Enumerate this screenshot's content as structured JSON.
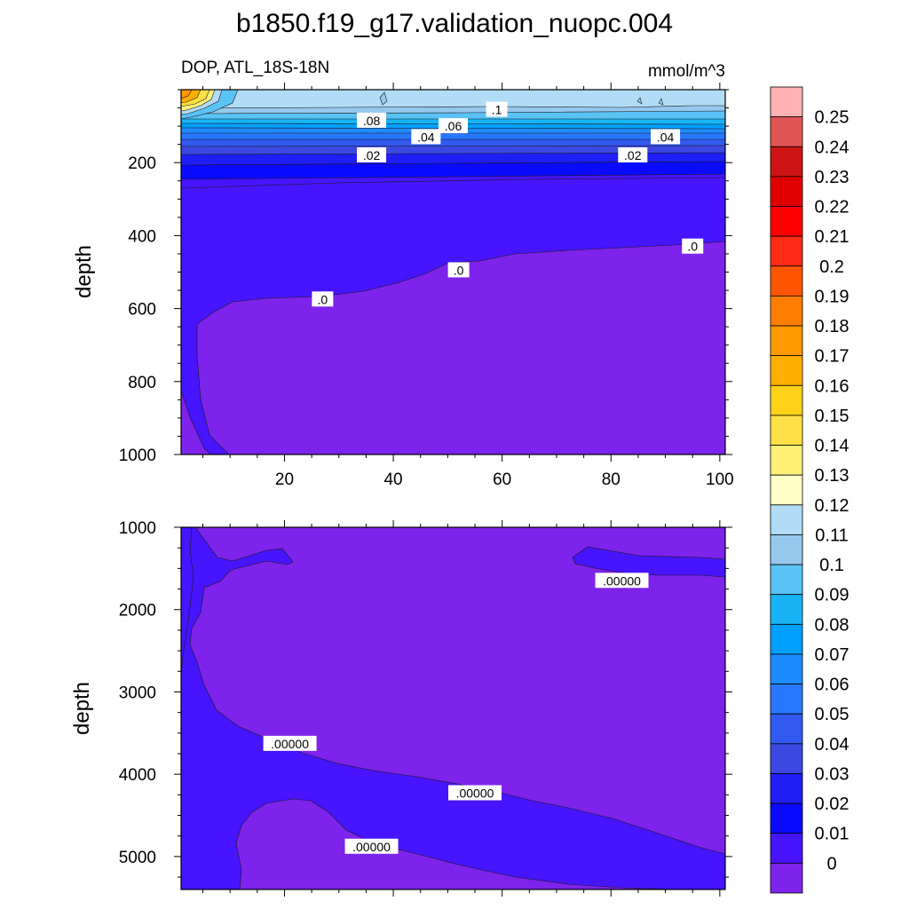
{
  "chart_data": {
    "type": "heatmap",
    "title": "b1850.f19_g17.validation_nuopc.004",
    "variable_label": "DOP, ATL_18S-18N",
    "units": "mmol/m^3",
    "colorbar": {
      "levels": [
        "0.25",
        "0.24",
        "0.23",
        "0.22",
        "0.21",
        "0.2",
        "0.19",
        "0.18",
        "0.17",
        "0.16",
        "0.15",
        "0.14",
        "0.13",
        "0.12",
        "0.11",
        "0.1",
        "0.09",
        "0.08",
        "0.07",
        "0.06",
        "0.05",
        "0.04",
        "0.03",
        "0.02",
        "0.01",
        "0"
      ],
      "colors": [
        "#ffb2b2",
        "#e05454",
        "#cc1414",
        "#e00000",
        "#ff0000",
        "#ff2a14",
        "#ff5500",
        "#ff7d00",
        "#ff9900",
        "#ffaf00",
        "#ffd21a",
        "#ffe046",
        "#fff078",
        "#ffffc8",
        "#b2dcf5",
        "#96c8ee",
        "#5ac3f5",
        "#18b4f5",
        "#00a0ff",
        "#1e8cff",
        "#2878ff",
        "#325af0",
        "#3c48e1",
        "#1e1ef5",
        "#0a0aff",
        "#4614ff",
        "#7d23eb"
      ]
    },
    "panels": [
      {
        "id": "upper",
        "ylabel": "depth",
        "xlabel": "",
        "xlim": [
          1,
          101
        ],
        "ylim": [
          0,
          1000
        ],
        "x_ticks": [
          "20",
          "40",
          "60",
          "80",
          "100"
        ],
        "y_ticks": [
          "200",
          "400",
          "600",
          "800",
          "1000"
        ],
        "contour_labels": [
          {
            "text": ".1",
            "x": 59,
            "depth": 55
          },
          {
            "text": ".08",
            "x": 36,
            "depth": 85
          },
          {
            "text": ".06",
            "x": 51,
            "depth": 100
          },
          {
            "text": ".04",
            "x": 46,
            "depth": 130
          },
          {
            "text": ".04",
            "x": 90,
            "depth": 130
          },
          {
            "text": ".02",
            "x": 36,
            "depth": 180
          },
          {
            "text": ".02",
            "x": 84,
            "depth": 180
          },
          {
            "text": ".0",
            "x": 95,
            "depth": 430
          },
          {
            "text": ".0",
            "x": 52,
            "depth": 495
          },
          {
            "text": ".0",
            "x": 27,
            "depth": 575
          }
        ]
      },
      {
        "id": "lower",
        "ylabel": "depth",
        "xlabel": "",
        "xlim": [
          1,
          101
        ],
        "ylim": [
          1000,
          5400
        ],
        "x_ticks": [],
        "y_ticks": [
          "1000",
          "2000",
          "3000",
          "4000",
          "5000"
        ],
        "contour_labels": [
          {
            "text": ".00000",
            "x": 82,
            "depth": 1650
          },
          {
            "text": ".00000",
            "x": 21,
            "depth": 3630
          },
          {
            "text": ".00000",
            "x": 55,
            "depth": 4230
          },
          {
            "text": ".00000",
            "x": 36,
            "depth": 4880
          }
        ]
      }
    ]
  }
}
